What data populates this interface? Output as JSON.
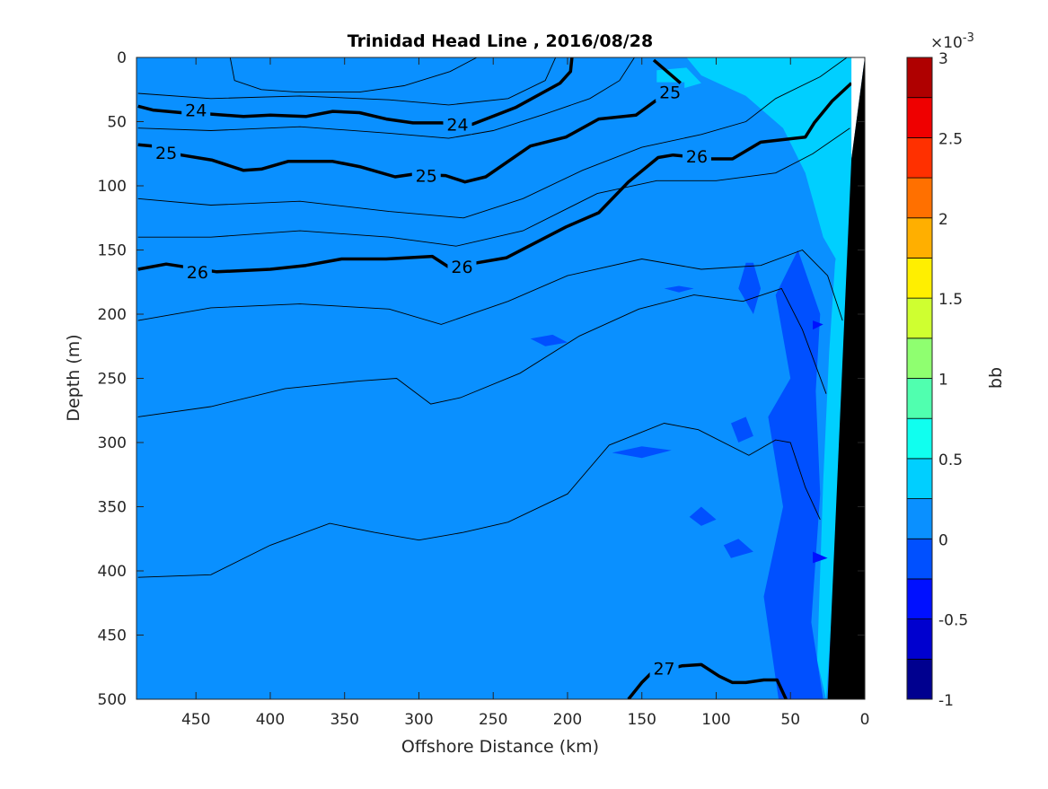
{
  "chart_data": {
    "type": "contour",
    "title": "Trinidad Head Line , 2016/08/28",
    "xlabel": "Offshore Distance (km)",
    "ylabel": "Depth (m)",
    "xlim": [
      490,
      0
    ],
    "ylim": [
      0,
      500
    ],
    "x_reversed": true,
    "y_reversed": true,
    "xticks": [
      450,
      400,
      350,
      300,
      250,
      200,
      150,
      100,
      50,
      0
    ],
    "yticks": [
      0,
      50,
      100,
      150,
      200,
      250,
      300,
      350,
      400,
      450,
      500
    ],
    "colorbar": {
      "label": "bb",
      "exponent_label": "×10",
      "exponent_power": "-3",
      "range": [
        -1,
        3
      ],
      "levels": [
        -1,
        -0.75,
        -0.5,
        -0.25,
        0,
        0.25,
        0.5,
        0.75,
        1,
        1.25,
        1.5,
        1.75,
        2,
        2.25,
        2.5,
        2.75,
        3
      ],
      "ticks": [
        "-1",
        "-0.5",
        "0",
        "0.5",
        "1",
        "1.5",
        "2",
        "2.5",
        "3"
      ],
      "tick_values": [
        -1,
        -0.5,
        0,
        0.5,
        1,
        1.5,
        2,
        2.5,
        3
      ],
      "colors": [
        "#00008F",
        "#0000CF",
        "#0010FF",
        "#0050FF",
        "#0A90FF",
        "#00CFFF",
        "#10FFEF",
        "#50FFAF",
        "#8FFF70",
        "#CFFF30",
        "#FFEF00",
        "#FFAF00",
        "#FF7000",
        "#FF3000",
        "#EF0000",
        "#AF0000"
      ]
    },
    "background_level_index": 4,
    "filled_patches": [
      {
        "level_index": 5,
        "points": [
          [
            120,
            0
          ],
          [
            9,
            0
          ],
          [
            9,
            120
          ],
          [
            18,
            160
          ],
          [
            28,
            140
          ],
          [
            40,
            90
          ],
          [
            55,
            55
          ],
          [
            80,
            30
          ],
          [
            95,
            22
          ],
          [
            110,
            14
          ]
        ]
      },
      {
        "level_index": 5,
        "points": [
          [
            9,
            79
          ],
          [
            22,
            430
          ],
          [
            26,
            500
          ],
          [
            32,
            470
          ],
          [
            28,
            330
          ],
          [
            24,
            230
          ],
          [
            20,
            160
          ]
        ]
      },
      {
        "level_index": 5,
        "points": [
          [
            140,
            10
          ],
          [
            120,
            8
          ],
          [
            110,
            20
          ],
          [
            125,
            25
          ],
          [
            140,
            20
          ]
        ]
      },
      {
        "level_index": 3,
        "points": [
          [
            45,
            150
          ],
          [
            60,
            185
          ],
          [
            50,
            250
          ],
          [
            65,
            280
          ],
          [
            55,
            350
          ],
          [
            68,
            420
          ],
          [
            58,
            500
          ],
          [
            28,
            500
          ],
          [
            36,
            440
          ],
          [
            30,
            340
          ],
          [
            33,
            260
          ],
          [
            30,
            200
          ]
        ]
      },
      {
        "level_index": 3,
        "points": [
          [
            75,
            160
          ],
          [
            70,
            180
          ],
          [
            75,
            200
          ],
          [
            85,
            180
          ],
          [
            80,
            160
          ]
        ]
      },
      {
        "level_index": 3,
        "points": [
          [
            80,
            280
          ],
          [
            75,
            295
          ],
          [
            85,
            300
          ],
          [
            90,
            285
          ]
        ]
      },
      {
        "level_index": 3,
        "points": [
          [
            170,
            308
          ],
          [
            150,
            303
          ],
          [
            130,
            306
          ],
          [
            150,
            312
          ]
        ]
      },
      {
        "level_index": 3,
        "points": [
          [
            110,
            350
          ],
          [
            100,
            360
          ],
          [
            110,
            365
          ],
          [
            118,
            358
          ]
        ]
      },
      {
        "level_index": 3,
        "points": [
          [
            85,
            375
          ],
          [
            75,
            385
          ],
          [
            90,
            390
          ],
          [
            95,
            380
          ]
        ]
      },
      {
        "level_index": 3,
        "points": [
          [
            225,
            219
          ],
          [
            210,
            216
          ],
          [
            200,
            222
          ],
          [
            215,
            225
          ]
        ]
      },
      {
        "level_index": 3,
        "points": [
          [
            125,
            178
          ],
          [
            115,
            180
          ],
          [
            125,
            183
          ],
          [
            135,
            180
          ]
        ]
      },
      {
        "level_index": 2,
        "points": [
          [
            35,
            205
          ],
          [
            28,
            208
          ],
          [
            35,
            212
          ]
        ]
      },
      {
        "level_index": 2,
        "points": [
          [
            35,
            385
          ],
          [
            25,
            390
          ],
          [
            35,
            394
          ]
        ]
      }
    ],
    "bathymetry": {
      "fill": "#000000",
      "points": [
        [
          0,
          0
        ],
        [
          9,
          79
        ],
        [
          25,
          500
        ],
        [
          0,
          500
        ]
      ]
    },
    "no_data": {
      "fill": "#FFFFFF",
      "points": [
        [
          9,
          0
        ],
        [
          0,
          0
        ],
        [
          9,
          79
        ]
      ]
    },
    "thick_contours": [
      {
        "value": 24,
        "points": [
          [
            489,
            38
          ],
          [
            479,
            41
          ],
          [
            460,
            43
          ],
          [
            442,
            44
          ],
          [
            418,
            46
          ],
          [
            400,
            45
          ],
          [
            376,
            46
          ],
          [
            358,
            42
          ],
          [
            340,
            43
          ],
          [
            322,
            48
          ],
          [
            304,
            51
          ],
          [
            285,
            51
          ],
          [
            264,
            52
          ],
          [
            235,
            39
          ],
          [
            205,
            20
          ],
          [
            198,
            11
          ],
          [
            197,
            0
          ]
        ],
        "labels": [
          [
            450,
            41
          ],
          [
            274,
            52
          ]
        ]
      },
      {
        "value": 25,
        "points": [
          [
            489,
            68
          ],
          [
            479,
            69
          ],
          [
            460,
            76
          ],
          [
            439,
            80
          ],
          [
            418,
            88
          ],
          [
            406,
            87
          ],
          [
            388,
            81
          ],
          [
            358,
            81
          ],
          [
            340,
            85
          ],
          [
            316,
            93
          ],
          [
            304,
            91
          ],
          [
            282,
            92
          ],
          [
            269,
            97
          ],
          [
            255,
            93
          ],
          [
            225,
            69
          ],
          [
            201,
            62
          ],
          [
            179,
            48
          ],
          [
            154,
            45
          ],
          [
            141,
            34
          ],
          [
            124,
            22
          ]
        ],
        "labels": [
          [
            470,
            74
          ],
          [
            295,
            92
          ],
          [
            131,
            27
          ]
        ]
      },
      {
        "value": 25,
        "points": [
          [
            142,
            2
          ],
          [
            124,
            20
          ]
        ],
        "labels": []
      },
      {
        "value": 26,
        "points": [
          [
            489,
            165
          ],
          [
            470,
            161
          ],
          [
            436,
            167
          ],
          [
            400,
            165
          ],
          [
            376,
            162
          ],
          [
            352,
            157
          ],
          [
            322,
            157
          ],
          [
            291,
            155
          ],
          [
            279,
            164
          ],
          [
            261,
            160
          ],
          [
            241,
            156
          ],
          [
            201,
            132
          ],
          [
            179,
            121
          ],
          [
            159,
            97
          ],
          [
            139,
            78
          ],
          [
            129,
            76
          ],
          [
            103,
            79
          ],
          [
            89,
            79
          ],
          [
            70,
            66
          ],
          [
            40,
            62
          ],
          [
            34,
            51
          ],
          [
            22,
            34
          ],
          [
            9,
            20
          ]
        ],
        "labels": [
          [
            449,
            167
          ],
          [
            271,
            163
          ],
          [
            113,
            77
          ]
        ]
      },
      {
        "value": 27,
        "points": [
          [
            159,
            500
          ],
          [
            150,
            487
          ],
          [
            144,
            480
          ],
          [
            123,
            474
          ],
          [
            110,
            473
          ],
          [
            98,
            482
          ],
          [
            89,
            487
          ],
          [
            80,
            487
          ],
          [
            68,
            485
          ],
          [
            59,
            485
          ],
          [
            53,
            500
          ]
        ],
        "labels": [
          [
            135,
            476
          ]
        ]
      }
    ],
    "thin_contours": [
      [
        [
          427,
          0
        ],
        [
          424,
          18
        ],
        [
          406,
          25
        ],
        [
          382,
          27
        ],
        [
          340,
          27
        ],
        [
          310,
          22
        ],
        [
          279,
          11
        ],
        [
          261,
          0
        ]
      ],
      [
        [
          489,
          28
        ],
        [
          440,
          32
        ],
        [
          380,
          30
        ],
        [
          320,
          33
        ],
        [
          280,
          37
        ],
        [
          240,
          32
        ],
        [
          215,
          18
        ],
        [
          208,
          0
        ]
      ],
      [
        [
          489,
          55
        ],
        [
          440,
          57
        ],
        [
          380,
          54
        ],
        [
          320,
          59
        ],
        [
          280,
          63
        ],
        [
          250,
          57
        ],
        [
          215,
          44
        ],
        [
          185,
          32
        ],
        [
          165,
          18
        ],
        [
          155,
          0
        ]
      ],
      [
        [
          489,
          110
        ],
        [
          440,
          115
        ],
        [
          380,
          112
        ],
        [
          320,
          120
        ],
        [
          270,
          125
        ],
        [
          230,
          110
        ],
        [
          190,
          88
        ],
        [
          150,
          70
        ],
        [
          110,
          60
        ],
        [
          80,
          50
        ],
        [
          60,
          32
        ],
        [
          30,
          15
        ],
        [
          12,
          0
        ]
      ],
      [
        [
          489,
          140
        ],
        [
          440,
          140
        ],
        [
          380,
          135
        ],
        [
          320,
          140
        ],
        [
          275,
          147
        ],
        [
          230,
          135
        ],
        [
          180,
          106
        ],
        [
          140,
          96
        ],
        [
          100,
          96
        ],
        [
          60,
          90
        ],
        [
          35,
          75
        ],
        [
          10,
          55
        ]
      ],
      [
        [
          489,
          205
        ],
        [
          440,
          195
        ],
        [
          380,
          192
        ],
        [
          320,
          196
        ],
        [
          285,
          208
        ],
        [
          240,
          190
        ],
        [
          200,
          170
        ],
        [
          150,
          157
        ],
        [
          110,
          165
        ],
        [
          70,
          162
        ],
        [
          42,
          150
        ],
        [
          25,
          170
        ],
        [
          15,
          205
        ]
      ],
      [
        [
          489,
          280
        ],
        [
          440,
          272
        ],
        [
          390,
          258
        ],
        [
          340,
          252
        ],
        [
          315,
          250
        ],
        [
          292,
          270
        ],
        [
          272,
          265
        ],
        [
          232,
          246
        ],
        [
          192,
          217
        ],
        [
          152,
          196
        ],
        [
          115,
          185
        ],
        [
          82,
          190
        ],
        [
          56,
          180
        ],
        [
          42,
          212
        ],
        [
          26,
          262
        ]
      ],
      [
        [
          489,
          405
        ],
        [
          440,
          403
        ],
        [
          400,
          380
        ],
        [
          360,
          363
        ],
        [
          330,
          370
        ],
        [
          300,
          376
        ],
        [
          270,
          370
        ],
        [
          240,
          362
        ],
        [
          200,
          340
        ],
        [
          172,
          302
        ],
        [
          135,
          285
        ],
        [
          112,
          290
        ],
        [
          78,
          310
        ],
        [
          60,
          298
        ],
        [
          50,
          300
        ],
        [
          40,
          335
        ],
        [
          30,
          360
        ]
      ]
    ]
  }
}
